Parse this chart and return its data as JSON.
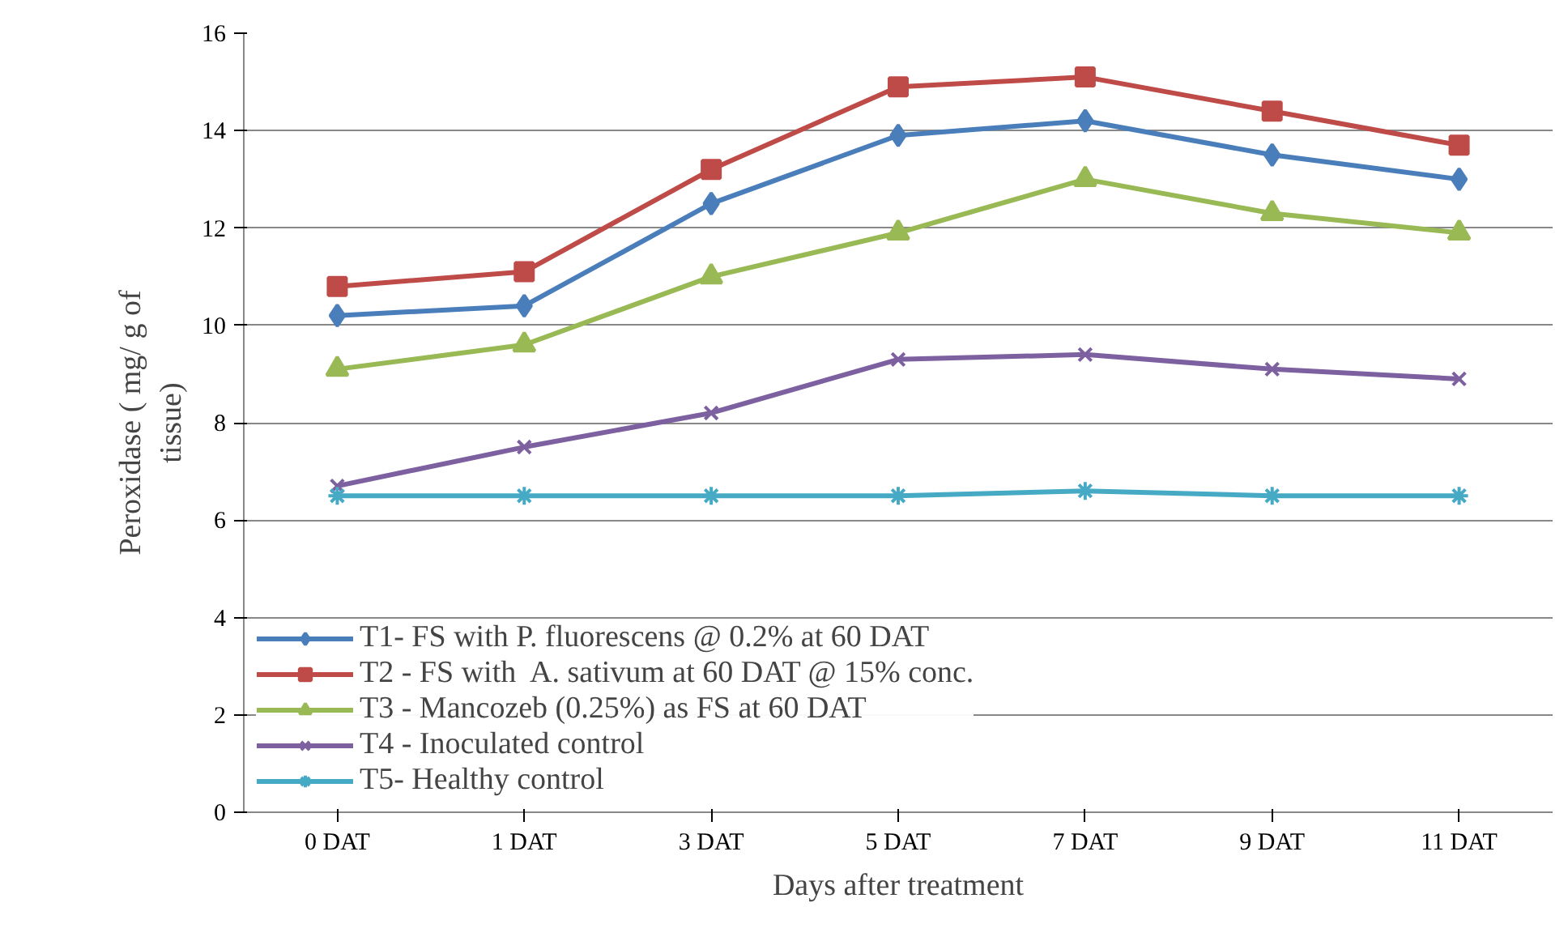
{
  "chart_data": {
    "type": "line",
    "xlabel": "Days after treatment",
    "ylabel": "Peroxidase ( mg/ g of\ntissue)",
    "categories": [
      "0 DAT",
      "1 DAT",
      "3 DAT",
      "5 DAT",
      "7 DAT",
      "9 DAT",
      "11 DAT"
    ],
    "ylim": [
      0,
      16
    ],
    "yticks": [
      0,
      2,
      4,
      6,
      8,
      10,
      12,
      14,
      16
    ],
    "grid": "y",
    "legend": "bottom left",
    "series": [
      {
        "name": "T1- FS with P. fluorescens @ 0.2% at 60 DAT",
        "color": "#4a7ebb",
        "marker": "diamond",
        "values": [
          10.2,
          10.4,
          12.5,
          13.9,
          14.2,
          13.5,
          13.0
        ]
      },
      {
        "name": "T2 - FS with  A. sativum at 60 DAT @ 15% conc.",
        "color": "#be4b48",
        "marker": "square",
        "values": [
          10.8,
          11.1,
          13.2,
          14.9,
          15.1,
          14.4,
          13.7
        ]
      },
      {
        "name": "T3 - Mancozeb (0.25%) as FS at 60 DAT",
        "color": "#98b954",
        "marker": "triangle",
        "values": [
          9.1,
          9.6,
          11.0,
          11.9,
          13.0,
          12.3,
          11.9
        ]
      },
      {
        "name": "T4 - Inoculated control",
        "color": "#7d60a0",
        "marker": "x",
        "values": [
          6.7,
          7.5,
          8.2,
          9.3,
          9.4,
          9.1,
          8.9
        ]
      },
      {
        "name": "T5- Healthy control",
        "color": "#46aac5",
        "marker": "cross",
        "values": [
          6.5,
          6.5,
          6.5,
          6.5,
          6.6,
          6.5,
          6.5
        ]
      }
    ]
  }
}
